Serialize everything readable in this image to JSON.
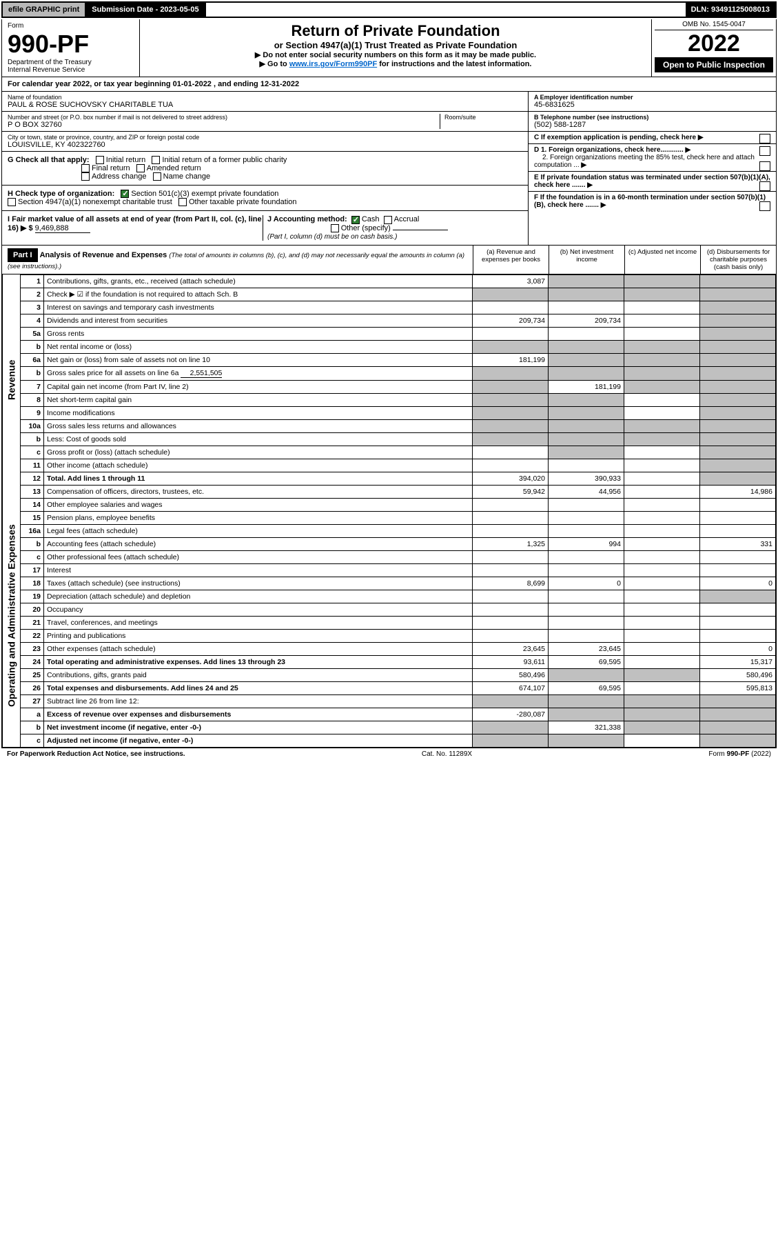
{
  "topbar": {
    "efile": "efile GRAPHIC print",
    "subdate_label": "Submission Date - 2023-05-05",
    "dln": "DLN: 93491125008013"
  },
  "header": {
    "form_label": "Form",
    "form_no": "990-PF",
    "dept": "Department of the Treasury",
    "irs": "Internal Revenue Service",
    "title": "Return of Private Foundation",
    "subtitle": "or Section 4947(a)(1) Trust Treated as Private Foundation",
    "note1": "▶ Do not enter social security numbers on this form as it may be made public.",
    "note2_pre": "▶ Go to ",
    "note2_link": "www.irs.gov/Form990PF",
    "note2_post": " for instructions and the latest information.",
    "omb": "OMB No. 1545-0047",
    "year": "2022",
    "open": "Open to Public Inspection"
  },
  "calendar": {
    "pre": "For calendar year 2022, or tax year beginning ",
    "begin": "01-01-2022",
    "mid": " , and ending ",
    "end": "12-31-2022"
  },
  "entity": {
    "name_lbl": "Name of foundation",
    "name": "PAUL & ROSE SUCHOVSKY CHARITABLE TUA",
    "addr_lbl": "Number and street (or P.O. box number if mail is not delivered to street address)",
    "addr": "P O BOX 32760",
    "room_lbl": "Room/suite",
    "city_lbl": "City or town, state or province, country, and ZIP or foreign postal code",
    "city": "LOUISVILLE, KY  402322760",
    "ein_lbl": "A Employer identification number",
    "ein": "45-6831625",
    "phone_lbl": "B Telephone number (see instructions)",
    "phone": "(502) 588-1287",
    "c_lbl": "C If exemption application is pending, check here",
    "d1_lbl": "D 1. Foreign organizations, check here............",
    "d2_lbl": "2. Foreign organizations meeting the 85% test, check here and attach computation ...",
    "e_lbl": "E If private foundation status was terminated under section 507(b)(1)(A), check here .......",
    "f_lbl": "F If the foundation is in a 60-month termination under section 507(b)(1)(B), check here .......",
    "g_lbl": "G Check all that apply:",
    "g_opts": [
      "Initial return",
      "Initial return of a former public charity",
      "Final return",
      "Amended return",
      "Address change",
      "Name change"
    ],
    "h_lbl": "H Check type of organization:",
    "h_501c3": "Section 501(c)(3) exempt private foundation",
    "h_4947": "Section 4947(a)(1) nonexempt charitable trust",
    "h_other": "Other taxable private foundation",
    "i_lbl": "I Fair market value of all assets at end of year (from Part II, col. (c), line 16) ▶ $",
    "i_val": "9,469,888",
    "j_lbl": "J Accounting method:",
    "j_cash": "Cash",
    "j_accrual": "Accrual",
    "j_other": "Other (specify)",
    "j_note": "(Part I, column (d) must be on cash basis.)"
  },
  "part1": {
    "label": "Part I",
    "title": "Analysis of Revenue and Expenses",
    "title_note": "(The total of amounts in columns (b), (c), and (d) may not necessarily equal the amounts in column (a) (see instructions).)",
    "col_a": "(a) Revenue and expenses per books",
    "col_b": "(b) Net investment income",
    "col_c": "(c) Adjusted net income",
    "col_d": "(d) Disbursements for charitable purposes (cash basis only)"
  },
  "revenue_label": "Revenue",
  "expenses_label": "Operating and Administrative Expenses",
  "rows": {
    "r1": {
      "n": "1",
      "label": "Contributions, gifts, grants, etc., received (attach schedule)",
      "a": "3,087",
      "b": "",
      "c": "",
      "d": "",
      "shade_b": true,
      "shade_c": true,
      "shade_d": true
    },
    "r2": {
      "n": "2",
      "label": "Check ▶ ☑ if the foundation is not required to attach Sch. B",
      "a": "",
      "b": "",
      "c": "",
      "d": "",
      "shade_a": true,
      "shade_b": true,
      "shade_c": true,
      "shade_d": true
    },
    "r3": {
      "n": "3",
      "label": "Interest on savings and temporary cash investments",
      "a": "",
      "b": "",
      "c": "",
      "d": "",
      "shade_d": true
    },
    "r4": {
      "n": "4",
      "label": "Dividends and interest from securities",
      "a": "209,734",
      "b": "209,734",
      "c": "",
      "d": "",
      "shade_d": true
    },
    "r5a": {
      "n": "5a",
      "label": "Gross rents",
      "a": "",
      "b": "",
      "c": "",
      "d": "",
      "shade_d": true
    },
    "r5b": {
      "n": "b",
      "label": "Net rental income or (loss)",
      "a": "",
      "b": "",
      "c": "",
      "d": "",
      "shade_a": true,
      "shade_b": true,
      "shade_c": true,
      "shade_d": true
    },
    "r6a": {
      "n": "6a",
      "label": "Net gain or (loss) from sale of assets not on line 10",
      "a": "181,199",
      "b": "",
      "c": "",
      "d": "",
      "shade_b": true,
      "shade_c": true,
      "shade_d": true
    },
    "r6b": {
      "n": "b",
      "label": "Gross sales price for all assets on line 6a",
      "extra": "2,551,505",
      "a": "",
      "b": "",
      "c": "",
      "d": "",
      "shade_a": true,
      "shade_b": true,
      "shade_c": true,
      "shade_d": true
    },
    "r7": {
      "n": "7",
      "label": "Capital gain net income (from Part IV, line 2)",
      "a": "",
      "b": "181,199",
      "c": "",
      "d": "",
      "shade_a": true,
      "shade_c": true,
      "shade_d": true
    },
    "r8": {
      "n": "8",
      "label": "Net short-term capital gain",
      "a": "",
      "b": "",
      "c": "",
      "d": "",
      "shade_a": true,
      "shade_b": true,
      "shade_d": true
    },
    "r9": {
      "n": "9",
      "label": "Income modifications",
      "a": "",
      "b": "",
      "c": "",
      "d": "",
      "shade_a": true,
      "shade_b": true,
      "shade_d": true
    },
    "r10a": {
      "n": "10a",
      "label": "Gross sales less returns and allowances",
      "a": "",
      "b": "",
      "c": "",
      "d": "",
      "shade_a": true,
      "shade_b": true,
      "shade_c": true,
      "shade_d": true
    },
    "r10b": {
      "n": "b",
      "label": "Less: Cost of goods sold",
      "a": "",
      "b": "",
      "c": "",
      "d": "",
      "shade_a": true,
      "shade_b": true,
      "shade_c": true,
      "shade_d": true
    },
    "r10c": {
      "n": "c",
      "label": "Gross profit or (loss) (attach schedule)",
      "a": "",
      "b": "",
      "c": "",
      "d": "",
      "shade_b": true,
      "shade_d": true
    },
    "r11": {
      "n": "11",
      "label": "Other income (attach schedule)",
      "a": "",
      "b": "",
      "c": "",
      "d": "",
      "shade_d": true
    },
    "r12": {
      "n": "12",
      "label": "Total. Add lines 1 through 11",
      "a": "394,020",
      "b": "390,933",
      "c": "",
      "d": "",
      "bold": true,
      "shade_d": true
    },
    "r13": {
      "n": "13",
      "label": "Compensation of officers, directors, trustees, etc.",
      "a": "59,942",
      "b": "44,956",
      "c": "",
      "d": "14,986"
    },
    "r14": {
      "n": "14",
      "label": "Other employee salaries and wages",
      "a": "",
      "b": "",
      "c": "",
      "d": ""
    },
    "r15": {
      "n": "15",
      "label": "Pension plans, employee benefits",
      "a": "",
      "b": "",
      "c": "",
      "d": ""
    },
    "r16a": {
      "n": "16a",
      "label": "Legal fees (attach schedule)",
      "a": "",
      "b": "",
      "c": "",
      "d": ""
    },
    "r16b": {
      "n": "b",
      "label": "Accounting fees (attach schedule)",
      "a": "1,325",
      "b": "994",
      "c": "",
      "d": "331"
    },
    "r16c": {
      "n": "c",
      "label": "Other professional fees (attach schedule)",
      "a": "",
      "b": "",
      "c": "",
      "d": ""
    },
    "r17": {
      "n": "17",
      "label": "Interest",
      "a": "",
      "b": "",
      "c": "",
      "d": ""
    },
    "r18": {
      "n": "18",
      "label": "Taxes (attach schedule) (see instructions)",
      "a": "8,699",
      "b": "0",
      "c": "",
      "d": "0"
    },
    "r19": {
      "n": "19",
      "label": "Depreciation (attach schedule) and depletion",
      "a": "",
      "b": "",
      "c": "",
      "d": "",
      "shade_d": true
    },
    "r20": {
      "n": "20",
      "label": "Occupancy",
      "a": "",
      "b": "",
      "c": "",
      "d": ""
    },
    "r21": {
      "n": "21",
      "label": "Travel, conferences, and meetings",
      "a": "",
      "b": "",
      "c": "",
      "d": ""
    },
    "r22": {
      "n": "22",
      "label": "Printing and publications",
      "a": "",
      "b": "",
      "c": "",
      "d": ""
    },
    "r23": {
      "n": "23",
      "label": "Other expenses (attach schedule)",
      "a": "23,645",
      "b": "23,645",
      "c": "",
      "d": "0"
    },
    "r24": {
      "n": "24",
      "label": "Total operating and administrative expenses. Add lines 13 through 23",
      "a": "93,611",
      "b": "69,595",
      "c": "",
      "d": "15,317",
      "bold": true
    },
    "r25": {
      "n": "25",
      "label": "Contributions, gifts, grants paid",
      "a": "580,496",
      "b": "",
      "c": "",
      "d": "580,496",
      "shade_b": true,
      "shade_c": true
    },
    "r26": {
      "n": "26",
      "label": "Total expenses and disbursements. Add lines 24 and 25",
      "a": "674,107",
      "b": "69,595",
      "c": "",
      "d": "595,813",
      "bold": true
    },
    "r27": {
      "n": "27",
      "label": "Subtract line 26 from line 12:",
      "a": "",
      "b": "",
      "c": "",
      "d": "",
      "shade_a": true,
      "shade_b": true,
      "shade_c": true,
      "shade_d": true
    },
    "r27a": {
      "n": "a",
      "label": "Excess of revenue over expenses and disbursements",
      "a": "-280,087",
      "b": "",
      "c": "",
      "d": "",
      "bold": true,
      "shade_b": true,
      "shade_c": true,
      "shade_d": true
    },
    "r27b": {
      "n": "b",
      "label": "Net investment income (if negative, enter -0-)",
      "a": "",
      "b": "321,338",
      "c": "",
      "d": "",
      "bold": true,
      "shade_a": true,
      "shade_c": true,
      "shade_d": true
    },
    "r27c": {
      "n": "c",
      "label": "Adjusted net income (if negative, enter -0-)",
      "a": "",
      "b": "",
      "c": "",
      "d": "",
      "bold": true,
      "shade_a": true,
      "shade_b": true,
      "shade_d": true
    }
  },
  "foot": {
    "left": "For Paperwork Reduction Act Notice, see instructions.",
    "mid": "Cat. No. 11289X",
    "right": "Form 990-PF (2022)"
  },
  "colors": {
    "black": "#000000",
    "white": "#ffffff",
    "grey_topbar": "#b8b8b8",
    "shade": "#c0c0c0",
    "link": "#0066cc",
    "check_green": "#2e7d32"
  }
}
